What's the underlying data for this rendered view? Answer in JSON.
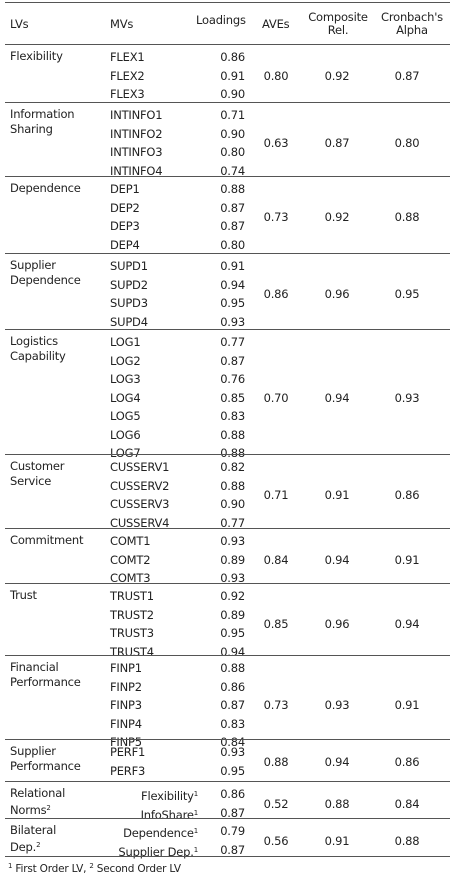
{
  "header": {
    "lvs": "LVs",
    "mvs": "MVs",
    "loadings": "Loadings",
    "aves": "AVEs",
    "composite_line1": "Composite",
    "composite_line2": "Rel.",
    "cronbach_line1": "Cronbach's",
    "cronbach_line2": "Alpha"
  },
  "groups": [
    {
      "lv": [
        "Flexibility"
      ],
      "mvs": [
        "FLEX1",
        "FLEX2",
        "FLEX3"
      ],
      "loadings": [
        "0.86",
        "0.91",
        "0.90"
      ],
      "ave": "0.80",
      "cr": "0.92",
      "alpha": "0.87"
    },
    {
      "lv": [
        "Information",
        "Sharing"
      ],
      "mvs": [
        "INTINFO1",
        "INTINFO2",
        "INTINFO3",
        "INTINFO4"
      ],
      "loadings": [
        "0.71",
        "0.90",
        "0.80",
        "0.74"
      ],
      "ave": "0.63",
      "cr": "0.87",
      "alpha": "0.80"
    },
    {
      "lv": [
        "Dependence"
      ],
      "mvs": [
        "DEP1",
        "DEP2",
        "DEP3",
        "DEP4"
      ],
      "loadings": [
        "0.88",
        "0.87",
        "0.87",
        "0.80"
      ],
      "ave": "0.73",
      "cr": "0.92",
      "alpha": "0.88"
    },
    {
      "lv": [
        "Supplier",
        "Dependence"
      ],
      "mvs": [
        "SUPD1",
        "SUPD2",
        "SUPD3",
        "SUPD4"
      ],
      "loadings": [
        "0.91",
        "0.94",
        "0.95",
        "0.93"
      ],
      "ave": "0.86",
      "cr": "0.96",
      "alpha": "0.95"
    },
    {
      "lv": [
        "Logistics",
        "Capability"
      ],
      "mvs": [
        "LOG1",
        "LOG2",
        "LOG3",
        "LOG4",
        "LOG5",
        "LOG6",
        "LOG7"
      ],
      "loadings": [
        "0.77",
        "0.87",
        "0.76",
        "0.85",
        "0.83",
        "0.88",
        "0.88"
      ],
      "ave": "0.70",
      "cr": "0.94",
      "alpha": "0.93"
    },
    {
      "lv": [
        "Customer",
        "Service"
      ],
      "mvs": [
        "CUSSERV1",
        "CUSSERV2",
        "CUSSERV3",
        "CUSSERV4"
      ],
      "loadings": [
        "0.82",
        "0.88",
        "0.90",
        "0.77"
      ],
      "ave": "0.71",
      "cr": "0.91",
      "alpha": "0.86"
    },
    {
      "lv": [
        "Commitment"
      ],
      "mvs": [
        "COMT1",
        "COMT2",
        "COMT3"
      ],
      "loadings": [
        "0.93",
        "0.89",
        "0.93"
      ],
      "ave": "0.84",
      "cr": "0.94",
      "alpha": "0.91"
    },
    {
      "lv": [
        "Trust"
      ],
      "mvs": [
        "TRUST1",
        "TRUST2",
        "TRUST3",
        "TRUST4"
      ],
      "loadings": [
        "0.92",
        "0.89",
        "0.95",
        "0.94"
      ],
      "ave": "0.85",
      "cr": "0.96",
      "alpha": "0.94"
    },
    {
      "lv": [
        "Financial",
        "Performance"
      ],
      "mvs": [
        "FINP1",
        "FINP2",
        "FINP3",
        "FINP4",
        "FINP5"
      ],
      "loadings": [
        "0.88",
        "0.86",
        "0.87",
        "0.83",
        "0.84"
      ],
      "ave": "0.73",
      "cr": "0.93",
      "alpha": "0.91"
    },
    {
      "lv": [
        "Supplier",
        "Performance"
      ],
      "mvs": [
        "PERF1",
        "PERF3"
      ],
      "loadings": [
        "0.93",
        "0.95"
      ],
      "ave": "0.88",
      "cr": "0.94",
      "alpha": "0.86"
    },
    {
      "lv": [
        "Relational",
        "Norms"
      ],
      "lv_sup": "2",
      "mvs": [
        "Flexibility",
        "InfoShare"
      ],
      "mv_sup": "1",
      "loadings": [
        "0.86",
        "0.87"
      ],
      "ave": "0.52",
      "cr": "0.88",
      "alpha": "0.84"
    },
    {
      "lv": [
        "Bilateral",
        "Dep."
      ],
      "lv_sup": "2",
      "mvs": [
        "Dependence",
        "Supplier Dep."
      ],
      "mv_sup": "1",
      "loadings": [
        "0.79",
        "0.87"
      ],
      "ave": "0.56",
      "cr": "0.91",
      "alpha": "0.88"
    }
  ],
  "footnote": {
    "sup1": "1",
    "text1": " First Order LV, ",
    "sup2": "2",
    "text2": " Second Order LV"
  }
}
